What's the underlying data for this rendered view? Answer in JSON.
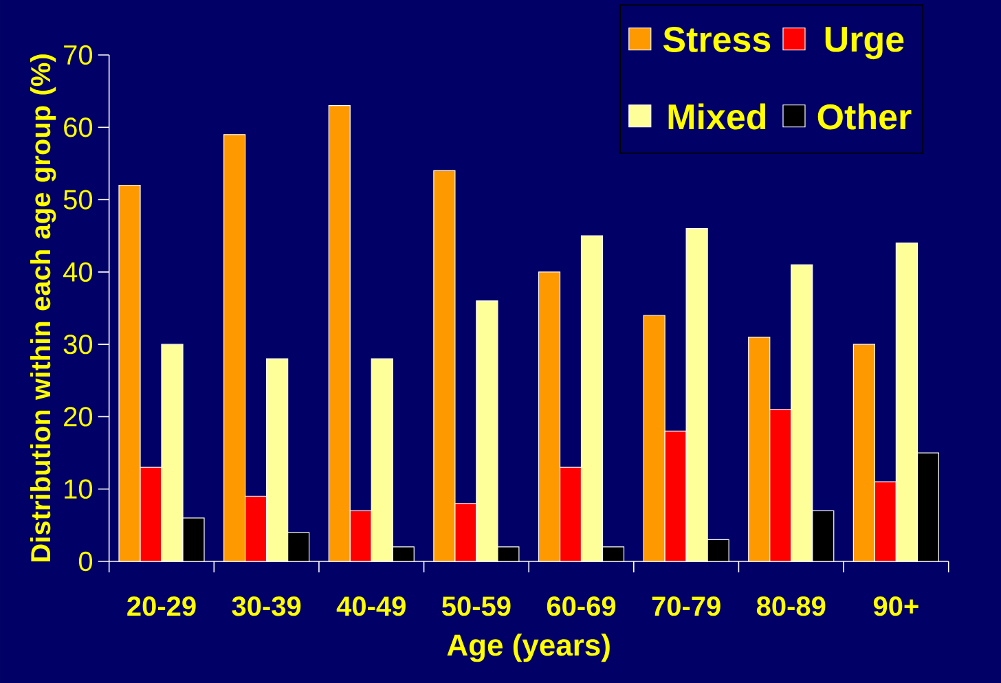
{
  "chart_data": {
    "type": "bar",
    "xlabel": "Age (years)",
    "ylabel": "Distribution within each age group (%)",
    "categories": [
      "20-29",
      "30-39",
      "40-49",
      "50-59",
      "60-69",
      "70-79",
      "80-89",
      "90+"
    ],
    "series": [
      {
        "name": "Stress",
        "color": "#ff9900",
        "values": [
          52,
          59,
          63,
          54,
          40,
          34,
          31,
          30
        ]
      },
      {
        "name": "Urge",
        "color": "#ff0000",
        "values": [
          13,
          9,
          7,
          8,
          13,
          18,
          21,
          11
        ]
      },
      {
        "name": "Mixed",
        "color": "#ffff99",
        "values": [
          30,
          28,
          28,
          36,
          45,
          46,
          41,
          44
        ]
      },
      {
        "name": "Other",
        "color": "#000000",
        "values": [
          6,
          4,
          2,
          2,
          2,
          3,
          7,
          15
        ]
      }
    ],
    "ylim": [
      0,
      70
    ],
    "yticks": [
      0,
      10,
      20,
      30,
      40,
      50,
      60,
      70
    ],
    "grid": false,
    "legend": "top right"
  }
}
